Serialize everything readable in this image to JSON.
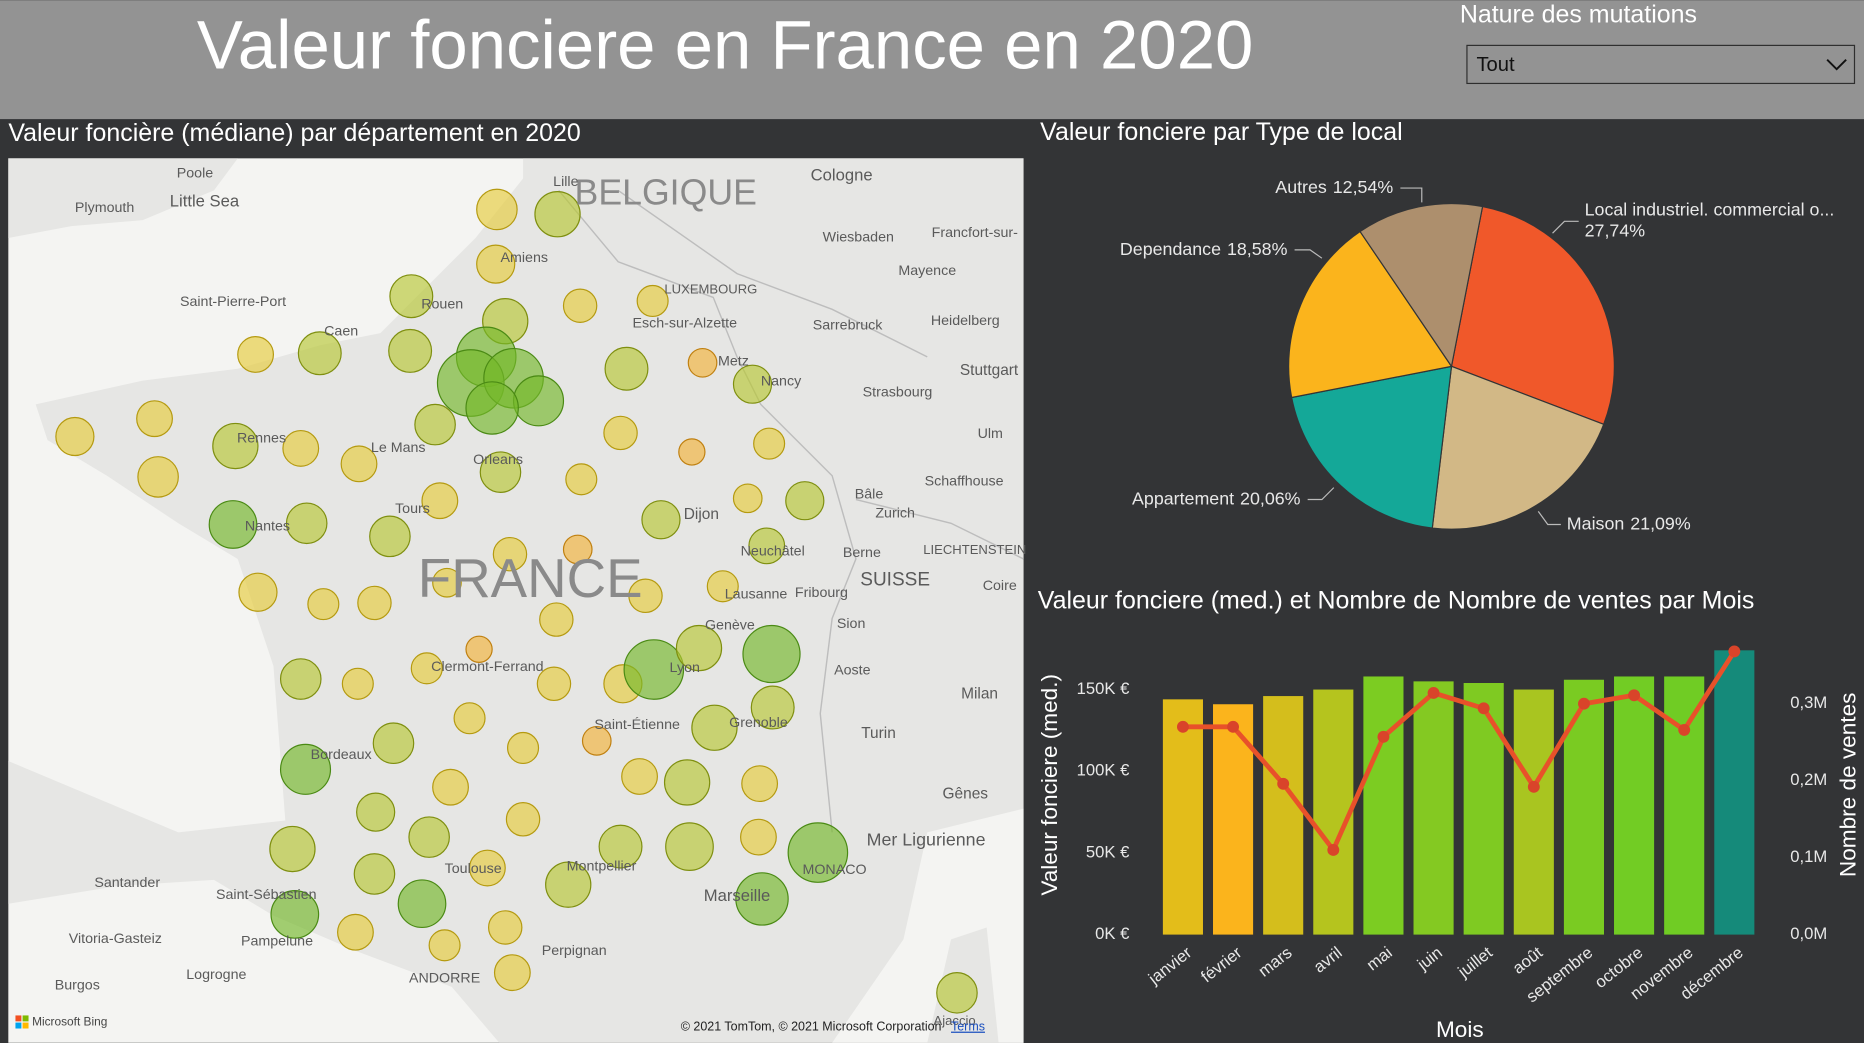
{
  "header": {
    "title": "Valeur fonciere en France en 2020"
  },
  "slicer": {
    "label": "Nature des mutations",
    "selected": "Tout"
  },
  "map": {
    "title": "Valeur foncière (médiane) par département en 2020",
    "places": [
      "Poole",
      "Plymouth",
      "Little Sea",
      "Lille",
      "BELGIQUE",
      "Cologne",
      "Wiesbaden",
      "Francfort-sur-",
      "Amiens",
      "Mayence",
      "Saint-Pierre-Port",
      "Rouen",
      "LUXEMBOURG",
      "Esch-sur-Alzette",
      "Sarrebruck",
      "Heidelberg",
      "Caen",
      "Metz",
      "Stuttgart",
      "Nancy",
      "Strasbourg",
      "Rennes",
      "Le Mans",
      "Ulm",
      "Orleans",
      "Schaffhouse",
      "Tours",
      "Nantes",
      "Bâle",
      "Zurich",
      "Dijon",
      "Neuchâtel",
      "Berne",
      "LIECHTENSTEIN",
      "FRANCE",
      "SUISSE",
      "Coire",
      "Lausanne",
      "Fribourg",
      "Genève",
      "Sion",
      "Clermont-Ferrand",
      "Lyon",
      "Aoste",
      "Milan",
      "Saint-Étienne",
      "Grenoble",
      "Turin",
      "Bordeaux",
      "Gênes",
      "Mer Ligurienne",
      "MONACO",
      "Toulouse",
      "Montpellier",
      "Marseille",
      "Santander",
      "Saint-Sébastien",
      "Vitoria-Gasteiz",
      "Pampelune",
      "Perpignan",
      "Burgos",
      "Logrogne",
      "ANDORRE",
      "Ajaccio"
    ],
    "attribution": "© 2021 TomTom, © 2021 Microsoft Corporation",
    "terms": "Terms",
    "logo": "Microsoft Bing"
  },
  "chart_data": [
    {
      "type": "pie",
      "title": "Valeur fonciere par Type de local",
      "categories": [
        "Local industriel. commercial o...",
        "Maison",
        "Appartement",
        "Dependance",
        "Autres"
      ],
      "values": [
        27.74,
        21.09,
        20.06,
        18.58,
        12.54
      ],
      "value_labels": [
        "27,74%",
        "21,09%",
        "20,06%",
        "18,58%",
        "12,54%"
      ],
      "colors": [
        "#f0582a",
        "#d2b886",
        "#14a898",
        "#fbb41c",
        "#ad8f6d"
      ]
    },
    {
      "type": "combo",
      "title": "Valeur fonciere (med.) et Nombre de Nombre de ventes par Mois",
      "x_label": "Mois",
      "y_label": "Valeur fonciere (med.)",
      "y2_label": "Nombre de ventes",
      "categories": [
        "janvier",
        "février",
        "mars",
        "avril",
        "mai",
        "juin",
        "juillet",
        "août",
        "septembre",
        "octobre",
        "novembre",
        "décembre"
      ],
      "ylim": [
        0,
        179000
      ],
      "yticks": [
        {
          "value": 0,
          "label": "0K €"
        },
        {
          "value": 50000,
          "label": "50K €"
        },
        {
          "value": 100000,
          "label": "100K €"
        },
        {
          "value": 150000,
          "label": "150K €"
        }
      ],
      "y2lim": [
        0,
        380000
      ],
      "y2ticks": [
        {
          "value": 0,
          "label": "0,0M"
        },
        {
          "value": 100000,
          "label": "0,1M"
        },
        {
          "value": 200000,
          "label": "0,2M"
        },
        {
          "value": 300000,
          "label": "0,3M"
        }
      ],
      "series": [
        {
          "kind": "bar",
          "colors": [
            "#e3bd1a",
            "#fbb41c",
            "#d4be1c",
            "#b5c41e",
            "#7ccc22",
            "#84c922",
            "#7fca22",
            "#a9c520",
            "#7acb22",
            "#72cc24",
            "#70cc24",
            "#158a7a"
          ],
          "values": [
            144000,
            141000,
            146000,
            150000,
            158000,
            155000,
            154000,
            150000,
            156000,
            158000,
            158000,
            174000
          ]
        },
        {
          "kind": "line",
          "axis": "y2",
          "color": "#e8512a",
          "values": [
            270000,
            270000,
            196000,
            110000,
            257000,
            314000,
            294000,
            192000,
            300000,
            311000,
            266000,
            368000
          ]
        }
      ]
    }
  ]
}
